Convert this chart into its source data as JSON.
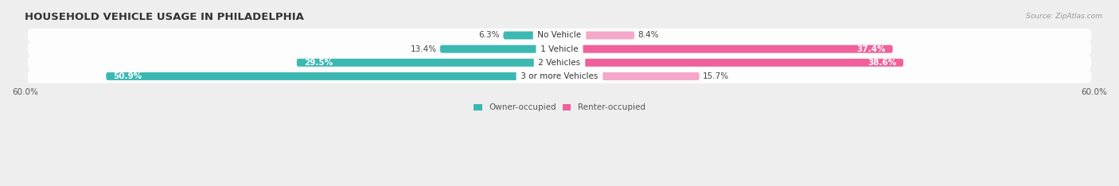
{
  "title": "HOUSEHOLD VEHICLE USAGE IN PHILADELPHIA",
  "source": "Source: ZipAtlas.com",
  "categories": [
    "No Vehicle",
    "1 Vehicle",
    "2 Vehicles",
    "3 or more Vehicles"
  ],
  "owner_values": [
    6.3,
    13.4,
    29.5,
    50.9
  ],
  "renter_values": [
    8.4,
    37.4,
    38.6,
    15.7
  ],
  "owner_color": "#3cb8b2",
  "renter_color_dark": "#f0609a",
  "renter_color_light": "#f5a8c8",
  "axis_max": 60.0,
  "legend_owner": "Owner-occupied",
  "legend_renter": "Renter-occupied",
  "bg_color": "#eeeeee",
  "title_fontsize": 9.5,
  "source_fontsize": 6.5,
  "label_fontsize": 7.5,
  "value_fontsize": 7.5,
  "axis_label_fontsize": 7.5,
  "renter_threshold": 20.0
}
